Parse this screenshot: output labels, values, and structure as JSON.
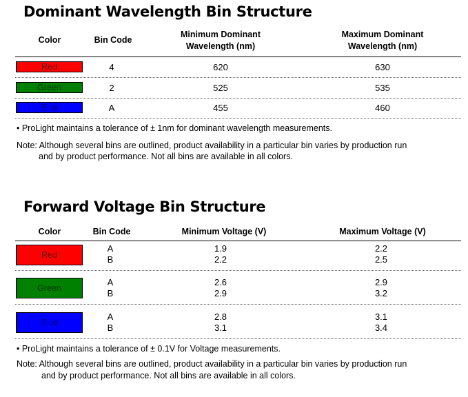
{
  "wavelength": {
    "title": "Dominant Wavelength Bin Structure",
    "headers": {
      "color": "Color",
      "bin_code": "Bin Code",
      "min_line1": "Minimum Dominant",
      "min_line2": "Wavelength (nm)",
      "max_line1": "Maximum Dominant",
      "max_line2": "Wavelength (nm)"
    },
    "rows": [
      {
        "color": "Red",
        "swatch": "#ff0000",
        "bin": "4",
        "min": "620",
        "max": "630"
      },
      {
        "color": "Green",
        "swatch": "#008000",
        "bin": "2",
        "min": "525",
        "max": "535"
      },
      {
        "color": "Blue",
        "swatch": "#0000ff",
        "bin": "A",
        "min": "455",
        "max": "460"
      }
    ],
    "tolerance": "• ProLight maintains a tolerance of ± 1nm for dominant wavelength measurements.",
    "note_line1": "Note: Although several bins are outlined, product availability in a particular bin varies by production run",
    "note_line2": "and by product performance. Not all bins are available in all colors."
  },
  "voltage": {
    "title": "Forward Voltage Bin Structure",
    "headers": {
      "color": "Color",
      "bin_code": "Bin Code",
      "min": "Minimum Voltage (V)",
      "max": "Maximum Voltage (V)"
    },
    "rows": [
      {
        "color": "Red",
        "swatch": "#ff0000",
        "bins": [
          "A",
          "B"
        ],
        "min": [
          "1.9",
          "2.2"
        ],
        "max": [
          "2.2",
          "2.5"
        ]
      },
      {
        "color": "Green",
        "swatch": "#008000",
        "bins": [
          "A",
          "B"
        ],
        "min": [
          "2.6",
          "2.9"
        ],
        "max": [
          "2.9",
          "3.2"
        ]
      },
      {
        "color": "Blue",
        "swatch": "#0000ff",
        "bins": [
          "A",
          "B"
        ],
        "min": [
          "2.8",
          "3.1"
        ],
        "max": [
          "3.1",
          "3.4"
        ]
      }
    ],
    "tolerance": "• ProLight maintains a tolerance of ± 0.1V for Voltage measurements.",
    "note_line1": "Note: Although several bins are outlined, product availability in a particular bin varies by production run",
    "note_line2": "and by product performance. Not all bins are available in all colors."
  }
}
